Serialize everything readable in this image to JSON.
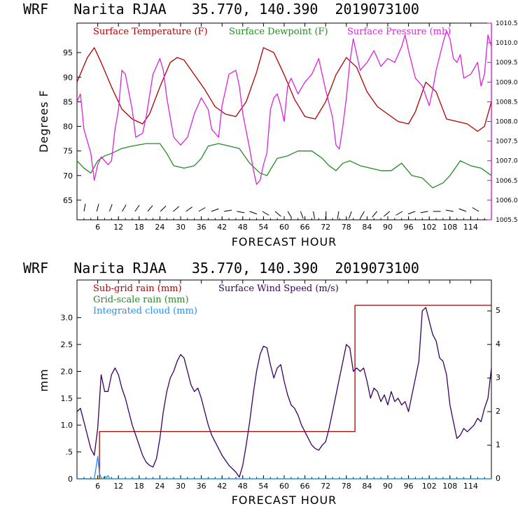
{
  "chart_data": [
    {
      "type": "line",
      "title": "WRF   Narita RJAA   35.770, 140.390  2019073100",
      "xlabel": "FORECAST HOUR",
      "ylabel": "Degrees F",
      "xlim": [
        0,
        120
      ],
      "ylim": [
        61,
        101
      ],
      "y2lim": [
        1005.5,
        1010.5
      ],
      "x_ticks": [
        "6",
        "12",
        "18",
        "24",
        "30",
        "36",
        "42",
        "48",
        "54",
        "60",
        "66",
        "72",
        "78",
        "84",
        "90",
        "96",
        "102",
        "108",
        "114"
      ],
      "y_ticks": [
        "65",
        "70",
        "75",
        "80",
        "85",
        "90",
        "95"
      ],
      "y2_ticks": [
        "1005.5",
        "1006.0",
        "1006.5",
        "1007.0",
        "1007.5",
        "1008.0",
        "1008.5",
        "1009.0",
        "1009.5",
        "1010.0",
        "1010.5"
      ],
      "colors": {
        "temperature": "#b00000",
        "dewpoint": "#228b22",
        "pressure": "#dd22dd",
        "axis2": "#cc00cc"
      },
      "series": [
        {
          "name": "Surface Temperature (F)",
          "axis": "left",
          "color": "#b00000",
          "x": [
            0,
            3,
            5,
            7,
            10,
            13,
            16,
            19,
            21,
            24,
            27,
            29,
            31,
            34,
            37,
            40,
            43,
            46,
            49,
            52,
            54,
            57,
            60,
            63,
            66,
            69,
            72,
            75,
            78,
            81,
            84,
            87,
            90,
            93,
            96,
            98,
            101,
            104,
            107,
            110,
            113,
            116,
            118,
            120
          ],
          "y": [
            89,
            94,
            96,
            93,
            88,
            83.5,
            81.5,
            80.5,
            82.5,
            88,
            93,
            94,
            93.5,
            90.5,
            87.5,
            84,
            82.5,
            82,
            85,
            91,
            96,
            95,
            90.5,
            85.5,
            82,
            81.5,
            85,
            90.5,
            94,
            92,
            87,
            84,
            82.5,
            81,
            80.5,
            83,
            89,
            87,
            81.5,
            81,
            80.5,
            79,
            80,
            85
          ]
        },
        {
          "name": "Surface Dewpoint (F)",
          "axis": "left",
          "color": "#228b22",
          "x": [
            0,
            2,
            4,
            6,
            8,
            10,
            13,
            16,
            20,
            24,
            26,
            28,
            31,
            34,
            36,
            38,
            41,
            44,
            47,
            50,
            53,
            55,
            58,
            61,
            64,
            68,
            71,
            73,
            75,
            77,
            79,
            82,
            85,
            88,
            91,
            94,
            97,
            100,
            103,
            106,
            108,
            111,
            114,
            117,
            120
          ],
          "y": [
            73,
            71.5,
            70.5,
            73,
            74,
            74.5,
            75.5,
            76,
            76.5,
            76.5,
            74.5,
            72,
            71.5,
            72,
            73.5,
            76,
            76.5,
            76,
            75.5,
            72.5,
            70.5,
            70,
            73.5,
            74,
            75,
            75,
            73.5,
            72,
            71,
            72.5,
            73,
            72,
            71.5,
            71,
            71,
            72.5,
            70,
            69.5,
            67.5,
            68.5,
            70,
            73,
            72,
            71.5,
            70
          ]
        },
        {
          "name": "Surface Pressure (mb)",
          "axis": "right",
          "color": "#dd22dd",
          "x": [
            0,
            1,
            2,
            4,
            5,
            6,
            7,
            8,
            9,
            10,
            11,
            12,
            13,
            14,
            16,
            17,
            19,
            20,
            22,
            24,
            25,
            26,
            28,
            30,
            32,
            34,
            36,
            38,
            39,
            41,
            42,
            44,
            46,
            47,
            48,
            50,
            51,
            52,
            53,
            54,
            55,
            56,
            57,
            58,
            59,
            60,
            61,
            62,
            63,
            64,
            66,
            68,
            70,
            72,
            74,
            75,
            76,
            77,
            78,
            79,
            80,
            81,
            82,
            84,
            86,
            88,
            90,
            92,
            94,
            95,
            96,
            98,
            100,
            102,
            103,
            104,
            106,
            107,
            108,
            109,
            110,
            111,
            112,
            114,
            116,
            117,
            118,
            119,
            120
          ],
          "y": [
            1008.5,
            1008.7,
            1007.8,
            1007.2,
            1006.5,
            1006.9,
            1007.1,
            1007.0,
            1006.9,
            1007.0,
            1007.8,
            1008.3,
            1009.3,
            1009.2,
            1008.3,
            1007.6,
            1007.7,
            1008.1,
            1009.2,
            1009.6,
            1009.3,
            1008.6,
            1007.6,
            1007.4,
            1007.6,
            1008.2,
            1008.6,
            1008.3,
            1007.8,
            1007.6,
            1008.4,
            1009.2,
            1009.3,
            1008.9,
            1008.2,
            1007.3,
            1006.8,
            1006.4,
            1006.5,
            1006.9,
            1007.2,
            1008.3,
            1008.6,
            1008.7,
            1008.4,
            1008.0,
            1008.9,
            1009.1,
            1008.9,
            1008.7,
            1009.0,
            1009.2,
            1009.6,
            1008.8,
            1008.1,
            1007.4,
            1007.3,
            1007.9,
            1008.6,
            1009.5,
            1010.1,
            1009.7,
            1009.3,
            1009.5,
            1009.8,
            1009.4,
            1009.6,
            1009.5,
            1009.9,
            1010.2,
            1009.8,
            1009.1,
            1008.9,
            1008.4,
            1008.8,
            1009.3,
            1010.0,
            1010.3,
            1010.1,
            1009.6,
            1009.5,
            1009.7,
            1009.1,
            1009.2,
            1009.5,
            1008.9,
            1009.2,
            1010.2,
            1009.9
          ]
        }
      ]
    },
    {
      "type": "line",
      "title": "WRF   Narita RJAA   35.770, 140.390  2019073100",
      "xlabel": "FORECAST HOUR",
      "ylabel": "mm",
      "xlim": [
        0,
        120
      ],
      "ylim": [
        0,
        3.7
      ],
      "y2lim": [
        0,
        5.92
      ],
      "x_ticks": [
        "6",
        "12",
        "18",
        "24",
        "30",
        "36",
        "42",
        "48",
        "54",
        "60",
        "66",
        "72",
        "78",
        "84",
        "90",
        "96",
        "102",
        "108",
        "114"
      ],
      "y_ticks": [
        "0",
        "0.5",
        ".5",
        "1.0",
        "1.5",
        "2.0",
        "2.5",
        "3.0"
      ],
      "y_ticks_shown": [
        "0",
        ".5",
        "1.0",
        "1.5",
        "2.0",
        "2.5",
        "3.0"
      ],
      "y2_ticks": [
        "0",
        "1",
        "2",
        "3",
        "4",
        "5"
      ],
      "colors": {
        "subgrid": "#b00000",
        "gridscale": "#228b22",
        "cloud": "#1e90ff",
        "wind": "#3a0060"
      },
      "series": [
        {
          "name": "Sub-grid rain (mm)",
          "axis": "left",
          "color": "#b00000",
          "x": [
            0,
            6.5,
            6.5,
            80.5,
            80.5,
            120
          ],
          "y": [
            0,
            0,
            0.88,
            0.88,
            3.23,
            3.23
          ]
        },
        {
          "name": "Grid-scale rain (mm)",
          "axis": "left",
          "color": "#228b22",
          "x": [
            0,
            120
          ],
          "y": [
            0,
            0
          ]
        },
        {
          "name": "Integrated cloud (mm)",
          "axis": "left",
          "color": "#1e90ff",
          "x": [
            0,
            5,
            5.5,
            6,
            6.5,
            7,
            7.5,
            8,
            8.5,
            9,
            9.5,
            10,
            120
          ],
          "y": [
            0,
            0,
            0.2,
            0.42,
            0.1,
            0.02,
            0,
            0.05,
            0.02,
            0.06,
            0,
            0,
            0
          ]
        },
        {
          "name": "Surface Wind Speed (m/s)",
          "axis": "right",
          "color": "#3a0060",
          "x": [
            0,
            1,
            2,
            3,
            4,
            5,
            6,
            7,
            8,
            9,
            10,
            11,
            12,
            13,
            14,
            15,
            16,
            17,
            18,
            19,
            20,
            21,
            22,
            23,
            24,
            25,
            26,
            27,
            28,
            29,
            30,
            31,
            32,
            33,
            34,
            35,
            36,
            37,
            38,
            39,
            40,
            41,
            42,
            43,
            44,
            45,
            46,
            47,
            48,
            49,
            50,
            51,
            52,
            53,
            54,
            55,
            56,
            57,
            58,
            59,
            60,
            61,
            62,
            63,
            64,
            65,
            66,
            67,
            68,
            69,
            70,
            71,
            72,
            73,
            74,
            75,
            76,
            77,
            78,
            79,
            80,
            81,
            82,
            83,
            84,
            85,
            86,
            87,
            88,
            89,
            90,
            91,
            92,
            93,
            94,
            95,
            96,
            97,
            98,
            99,
            100,
            101,
            102,
            103,
            104,
            105,
            106,
            107,
            108,
            109,
            110,
            111,
            112,
            113,
            114,
            115,
            116,
            117,
            118,
            119,
            120
          ],
          "y": [
            2.0,
            2.1,
            1.7,
            1.3,
            0.9,
            0.7,
            1.5,
            3.1,
            2.6,
            2.6,
            3.1,
            3.3,
            3.1,
            2.7,
            2.4,
            2.0,
            1.6,
            1.3,
            1.0,
            0.7,
            0.5,
            0.4,
            0.35,
            0.6,
            1.2,
            2.0,
            2.6,
            3.0,
            3.2,
            3.5,
            3.7,
            3.6,
            3.2,
            2.8,
            2.6,
            2.7,
            2.4,
            2.0,
            1.6,
            1.3,
            1.1,
            0.9,
            0.7,
            0.55,
            0.4,
            0.3,
            0.2,
            0.05,
            0.4,
            1.0,
            1.7,
            2.5,
            3.2,
            3.7,
            3.95,
            3.9,
            3.4,
            3.0,
            3.3,
            3.4,
            2.9,
            2.5,
            2.2,
            2.1,
            1.9,
            1.6,
            1.4,
            1.2,
            1.0,
            0.9,
            0.85,
            1.0,
            1.1,
            1.5,
            2.0,
            2.5,
            3.0,
            3.5,
            4.0,
            3.9,
            3.2,
            3.3,
            3.2,
            3.3,
            2.9,
            2.4,
            2.7,
            2.6,
            2.3,
            2.5,
            2.2,
            2.6,
            2.3,
            2.4,
            2.2,
            2.3,
            2.0,
            2.5,
            3.0,
            3.5,
            5.0,
            5.1,
            4.7,
            4.3,
            4.1,
            3.6,
            3.5,
            3.1,
            2.2,
            1.7,
            1.2,
            1.3,
            1.5,
            1.4,
            1.5,
            1.6,
            1.8,
            1.7,
            2.1,
            2.4,
            3.3
          ]
        }
      ]
    }
  ],
  "top": {
    "title": "WRF   Narita RJAA   35.770, 140.390  2019073100",
    "xlabel": "FORECAST HOUR",
    "ylabel": "Degrees F",
    "legend": {
      "temp": "Surface Temperature (F)",
      "dew": "Surface Dewpoint (F)",
      "pres": "Surface Pressure (mb)"
    }
  },
  "bottom": {
    "title": "WRF   Narita RJAA   35.770, 140.390  2019073100",
    "xlabel": "FORECAST HOUR",
    "ylabel": "mm",
    "legend": {
      "subgrid": "Sub-grid rain (mm)",
      "gridscale": "Grid-scale rain (mm)",
      "cloud": "Integrated cloud (mm)",
      "wind": "Surface Wind Speed (m/s)"
    }
  }
}
